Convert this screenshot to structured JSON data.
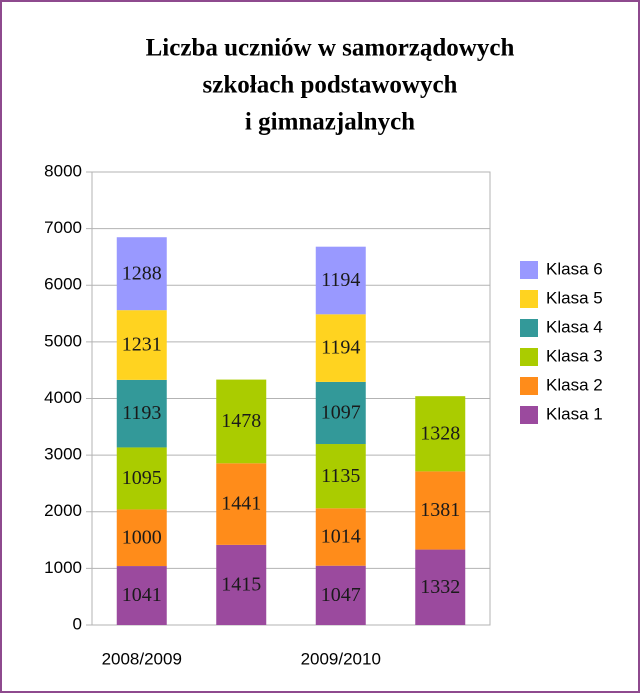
{
  "chart_data": {
    "type": "stacked_bar",
    "title": [
      "Liczba uczniów w samorządowych",
      "szkołach podstawowych",
      "i gimnazjalnych"
    ],
    "categories": [
      "2008/2009",
      null,
      "2009/2010",
      null
    ],
    "series": [
      {
        "name": "Klasa 1",
        "color": "#9b4a9e",
        "values": [
          1041,
          1415,
          1047,
          1332
        ]
      },
      {
        "name": "Klasa 2",
        "color": "#ff8c1a",
        "values": [
          1000,
          1441,
          1014,
          1381
        ]
      },
      {
        "name": "Klasa 3",
        "color": "#aacc00",
        "values": [
          1095,
          1478,
          1135,
          1328
        ]
      },
      {
        "name": "Klasa 4",
        "color": "#339999",
        "values": [
          1193,
          null,
          1097,
          null
        ]
      },
      {
        "name": "Klasa 5",
        "color": "#ffd320",
        "values": [
          1231,
          null,
          1194,
          null
        ]
      },
      {
        "name": "Klasa 6",
        "color": "#9999ff",
        "values": [
          1288,
          null,
          1194,
          null
        ]
      }
    ],
    "ylim": [
      0,
      8000
    ],
    "yticks": [
      0,
      1000,
      2000,
      3000,
      4000,
      5000,
      6000,
      7000,
      8000
    ],
    "grid": true,
    "legend": "right"
  }
}
